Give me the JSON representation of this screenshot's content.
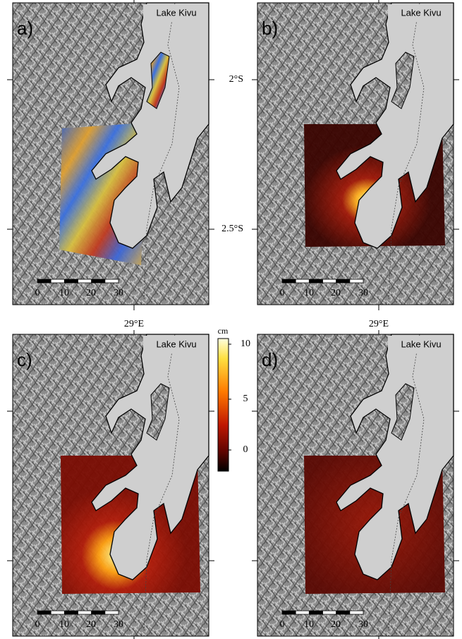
{
  "panels": [
    {
      "label": "a)",
      "lake": "Lake Kivu",
      "scale_bar": [
        0,
        10,
        20,
        30
      ]
    },
    {
      "label": "b)",
      "lake": "Lake Kivu",
      "scale_bar": [
        0,
        10,
        20,
        30
      ]
    },
    {
      "label": "c)",
      "lake": "Lake Kivu",
      "scale_bar": [
        0,
        10,
        20,
        30
      ]
    },
    {
      "label": "d)",
      "lake": "Lake Kivu",
      "scale_bar": [
        0,
        10,
        20,
        30
      ]
    }
  ],
  "axes": {
    "lat_ticks": [
      "2°S",
      "2.5°S"
    ],
    "lon_ticks": [
      "29°E",
      "29°E"
    ]
  },
  "colorbar": {
    "unit": "cm",
    "ticks": [
      10,
      5,
      0
    ]
  }
}
